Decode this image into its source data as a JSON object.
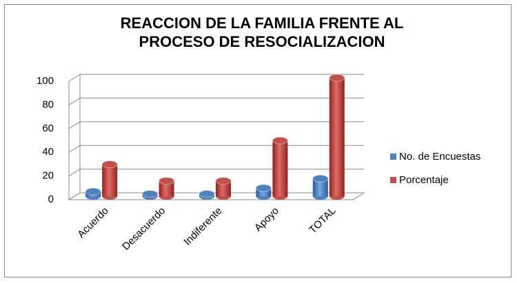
{
  "chart_data": {
    "type": "bar3d",
    "title": "REACCION DE LA FAMILIA FRENTE AL PROCESO DE RESOCIALIZACION",
    "categories": [
      "Acuerdo",
      "Desacuerdo",
      "Indiferente",
      "Apoyo",
      "TOTAL"
    ],
    "series": [
      {
        "name": "No. de Encuestas",
        "color": "#4f81bd",
        "values": [
          4,
          2,
          2,
          7,
          15
        ]
      },
      {
        "name": "Porcentaje",
        "color": "#c0504d",
        "values": [
          27,
          13,
          13,
          47,
          100
        ]
      }
    ],
    "ylim": [
      0,
      100
    ],
    "yticks": [
      0,
      20,
      40,
      60,
      80,
      100
    ],
    "grid": true,
    "legend": "right"
  }
}
